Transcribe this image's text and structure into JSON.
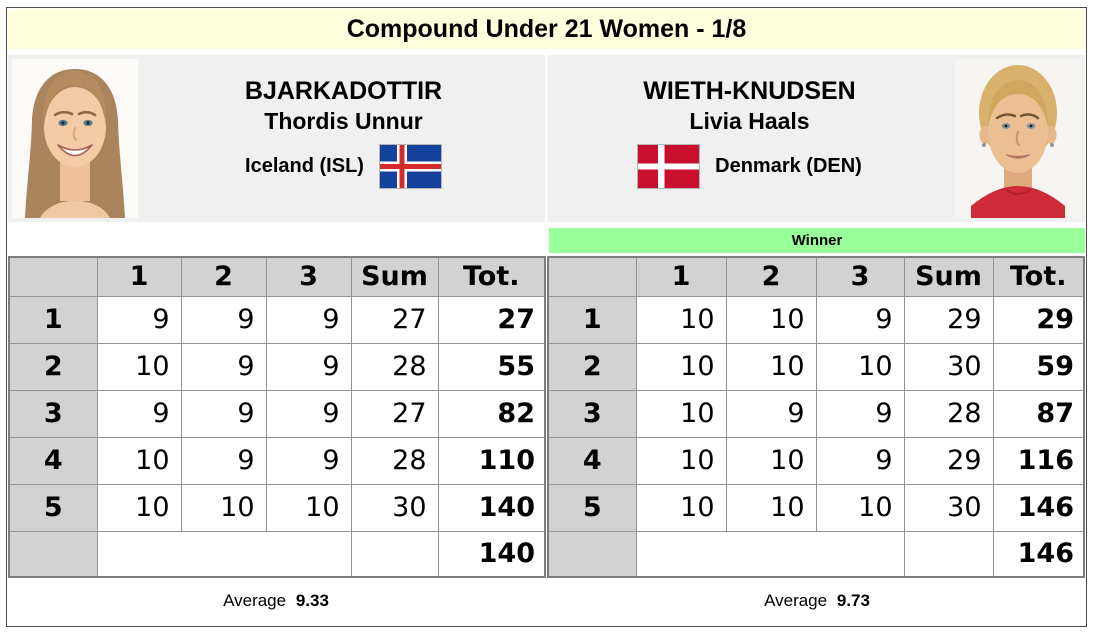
{
  "title": "Compound Under 21 Women - 1/8",
  "players": {
    "left": {
      "surname": "BJARKADOTTIR",
      "given_name": "Thordis Unnur",
      "country": "Iceland (ISL)",
      "flag": "iceland-flag"
    },
    "right": {
      "surname": "WIETH-KNUDSEN",
      "given_name": "Livia Haals",
      "country": "Denmark (DEN)",
      "flag": "denmark-flag",
      "winner_label": "Winner"
    }
  },
  "scores": {
    "headers": [
      "",
      "1",
      "2",
      "3",
      "Sum",
      "Tot."
    ],
    "average_label": "Average",
    "left": {
      "rows": [
        [
          "1",
          "9",
          "9",
          "9",
          "27",
          "27"
        ],
        [
          "2",
          "10",
          "9",
          "9",
          "28",
          "55"
        ],
        [
          "3",
          "9",
          "9",
          "9",
          "27",
          "82"
        ],
        [
          "4",
          "10",
          "9",
          "9",
          "28",
          "110"
        ],
        [
          "5",
          "10",
          "10",
          "10",
          "30",
          "140"
        ]
      ],
      "final_total": "140",
      "average": "9.33"
    },
    "right": {
      "rows": [
        [
          "1",
          "10",
          "10",
          "9",
          "29",
          "29"
        ],
        [
          "2",
          "10",
          "10",
          "10",
          "30",
          "59"
        ],
        [
          "3",
          "10",
          "9",
          "9",
          "28",
          "87"
        ],
        [
          "4",
          "10",
          "10",
          "9",
          "29",
          "116"
        ],
        [
          "5",
          "10",
          "10",
          "10",
          "30",
          "146"
        ]
      ],
      "final_total": "146",
      "average": "9.73"
    }
  },
  "colors": {
    "title_bg": "#FFFFDE",
    "card_bg": "#F0F0F0",
    "winner_green": "#99FF99",
    "header_gray": "#D2D2D2",
    "table_border": "#7E7E7E",
    "iceland_blue": "#14419C",
    "iceland_red": "#D32B2B",
    "denmark_red": "#C8102E"
  }
}
